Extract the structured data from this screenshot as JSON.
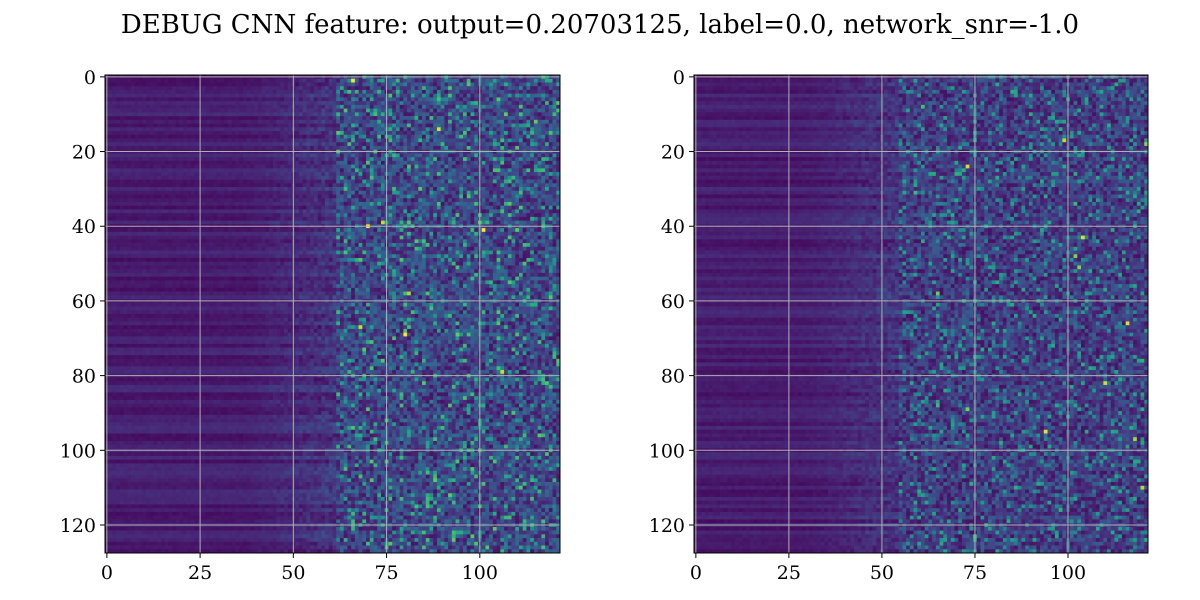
{
  "figure": {
    "suptitle": "DEBUG CNN feature: output=0.20703125, label=0.0, network_snr=-1.0"
  },
  "chart_data": [
    {
      "type": "heatmap",
      "colormap": "viridis",
      "rows": 128,
      "cols": 122,
      "xlim": [
        -0.5,
        121.5
      ],
      "ylim": [
        127.5,
        -0.5
      ],
      "xticks": [
        0,
        25,
        50,
        75,
        100
      ],
      "yticks": [
        0,
        20,
        40,
        60,
        80,
        100,
        120
      ],
      "grid": true,
      "values_description_free": "noise-like feature map: dark (low) values on the left columns with horizontal banding, brighter speckled values to the right of column ~70",
      "seed": 7
    },
    {
      "type": "heatmap",
      "colormap": "viridis",
      "rows": 128,
      "cols": 122,
      "xlim": [
        -0.5,
        121.5
      ],
      "ylim": [
        127.5,
        -0.5
      ],
      "xticks": [
        0,
        25,
        50,
        75,
        100
      ],
      "yticks": [
        0,
        20,
        40,
        60,
        80,
        100,
        120
      ],
      "grid": true,
      "values_description_free": "noise-like feature map: dark banded left region, moderate speckled values to the right of column ~60",
      "seed": 19
    }
  ]
}
